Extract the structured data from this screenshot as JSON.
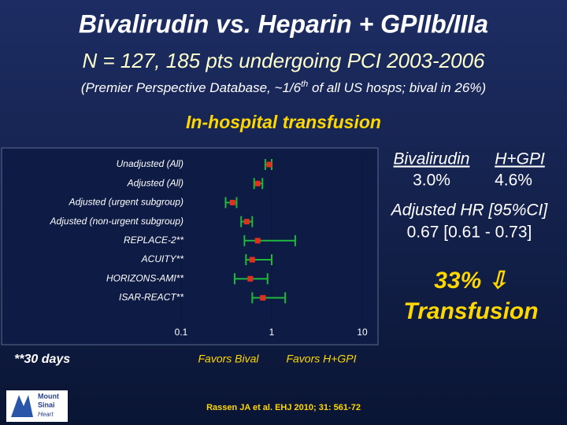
{
  "slide": {
    "title": "Bivalirudin vs. Heparin + GPIIb/IIIa",
    "subtitle": "N = 127, 185 pts undergoing PCI 2003-2006",
    "note_parts": [
      "(Premier Perspective Database, ~1/6",
      "th",
      " of all US hosps; bival in 26%)"
    ],
    "section_title": "In-hospital transfusion",
    "results": {
      "headers": [
        "Bivalirudin",
        "H+GPI"
      ],
      "rates": [
        "3.0%",
        "4.6%"
      ],
      "hr_label": "Adjusted HR [95%CI]",
      "hr_value": "0.67 [0.61 - 0.73]"
    },
    "headline": [
      "33% ⇩",
      "Transfusion"
    ],
    "footnote": "**30 days",
    "citation": "Rassen JA et al. EHJ 2010; 31: 561-72",
    "logo": [
      "Mount",
      "Sinai",
      "Heart"
    ]
  },
  "chart_data": {
    "type": "forest",
    "categories": [
      "Unadjusted (All)",
      "Adjusted (All)",
      "Adjusted (urgent subgroup)",
      "Adjusted (non-urgent subgroup)",
      "REPLACE-2**",
      "ACUITY**",
      "HORIZONS-AMI**",
      "ISAR-REACT**"
    ],
    "values": [
      0.94,
      0.7,
      0.37,
      0.53,
      0.7,
      0.61,
      0.58,
      0.8
    ],
    "ci_low": [
      0.85,
      0.64,
      0.31,
      0.46,
      0.5,
      0.52,
      0.39,
      0.61
    ],
    "ci_high": [
      1.0,
      0.79,
      0.41,
      0.61,
      1.82,
      1.0,
      0.9,
      1.41
    ],
    "xlim": [
      0.1,
      10
    ],
    "xticks": [
      0.1,
      1,
      10
    ],
    "log_x": true,
    "x_labels": [
      "Favors Bival",
      "Favors H+GPI"
    ],
    "point_color": "#e0301e",
    "ci_color": "#1fb83c"
  }
}
